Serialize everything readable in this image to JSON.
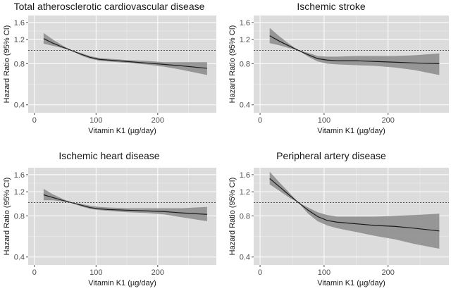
{
  "chart_data": [
    {
      "type": "line",
      "title": "Total atherosclerotic cardiovascular disease",
      "xlabel": "Vitamin K1 (µg/day)",
      "ylabel": "Hazard Ratio (95% CI)",
      "xlim": [
        -10,
        295
      ],
      "ylim": [
        0.35,
        1.8
      ],
      "ylog": true,
      "xticks": [
        0,
        100,
        200
      ],
      "xtick_labels": [
        "0",
        "100",
        "200"
      ],
      "yticks": [
        0.4,
        0.8,
        1.2,
        1.6
      ],
      "ytick_labels": [
        "0.4",
        "0.8",
        "1.2",
        "1.6"
      ],
      "reference_line_y": 1.0,
      "x": [
        15,
        30,
        45,
        60,
        75,
        90,
        105,
        120,
        150,
        180,
        210,
        240,
        280
      ],
      "y": [
        1.22,
        1.13,
        1.06,
        1.0,
        0.94,
        0.89,
        0.86,
        0.85,
        0.83,
        0.81,
        0.79,
        0.77,
        0.74
      ],
      "lower": [
        1.12,
        1.08,
        1.04,
        1.0,
        0.92,
        0.87,
        0.84,
        0.83,
        0.81,
        0.79,
        0.76,
        0.72,
        0.66
      ],
      "upper": [
        1.34,
        1.2,
        1.09,
        1.0,
        0.96,
        0.91,
        0.88,
        0.87,
        0.85,
        0.84,
        0.82,
        0.82,
        0.82
      ],
      "grid": true,
      "grid_color": "#ffffff",
      "panel_color": "#dcdcdc",
      "band_color": "#8a8a8a",
      "line_color": "#1a1a1a"
    },
    {
      "type": "line",
      "title": "Ischemic stroke",
      "xlabel": "Vitamin K1 (µg/day)",
      "ylabel": "Hazard Ratio (95% CI)",
      "xlim": [
        -10,
        295
      ],
      "ylim": [
        0.35,
        1.8
      ],
      "ylog": true,
      "xticks": [
        0,
        100,
        200
      ],
      "xtick_labels": [
        "0",
        "100",
        "200"
      ],
      "yticks": [
        0.4,
        0.8,
        1.2,
        1.6
      ],
      "ytick_labels": [
        "0.4",
        "0.8",
        "1.2",
        "1.6"
      ],
      "reference_line_y": 1.0,
      "x": [
        15,
        30,
        45,
        60,
        75,
        90,
        105,
        120,
        150,
        180,
        210,
        240,
        280
      ],
      "y": [
        1.28,
        1.17,
        1.08,
        1.0,
        0.93,
        0.87,
        0.85,
        0.84,
        0.84,
        0.83,
        0.82,
        0.81,
        0.8
      ],
      "lower": [
        1.13,
        1.09,
        1.04,
        1.0,
        0.9,
        0.83,
        0.8,
        0.79,
        0.78,
        0.77,
        0.75,
        0.72,
        0.66
      ],
      "upper": [
        1.46,
        1.27,
        1.12,
        1.0,
        0.96,
        0.91,
        0.9,
        0.9,
        0.91,
        0.91,
        0.91,
        0.92,
        0.95
      ],
      "grid": true,
      "grid_color": "#ffffff",
      "panel_color": "#dcdcdc",
      "band_color": "#8a8a8a",
      "line_color": "#1a1a1a"
    },
    {
      "type": "line",
      "title": "Ischemic heart disease",
      "xlabel": "Vitamin K1 (µg/day)",
      "ylabel": "Hazard Ratio (95% CI)",
      "xlim": [
        -10,
        295
      ],
      "ylim": [
        0.35,
        1.8
      ],
      "ylog": true,
      "xticks": [
        0,
        100,
        200
      ],
      "xtick_labels": [
        "0",
        "100",
        "200"
      ],
      "yticks": [
        0.4,
        0.8,
        1.2,
        1.6
      ],
      "ytick_labels": [
        "0.4",
        "0.8",
        "1.2",
        "1.6"
      ],
      "reference_line_y": 1.0,
      "x": [
        15,
        30,
        45,
        60,
        75,
        90,
        105,
        120,
        150,
        180,
        210,
        240,
        280
      ],
      "y": [
        1.14,
        1.09,
        1.04,
        1.0,
        0.96,
        0.92,
        0.9,
        0.89,
        0.88,
        0.87,
        0.86,
        0.84,
        0.82
      ],
      "lower": [
        1.04,
        1.04,
        1.02,
        1.0,
        0.94,
        0.9,
        0.88,
        0.87,
        0.85,
        0.84,
        0.82,
        0.78,
        0.73
      ],
      "upper": [
        1.26,
        1.15,
        1.07,
        1.0,
        0.98,
        0.95,
        0.93,
        0.92,
        0.91,
        0.91,
        0.91,
        0.91,
        0.93
      ],
      "grid": true,
      "grid_color": "#ffffff",
      "panel_color": "#dcdcdc",
      "band_color": "#8a8a8a",
      "line_color": "#1a1a1a"
    },
    {
      "type": "line",
      "title": "Peripheral artery disease",
      "xlabel": "Vitamin K1 (µg/day)",
      "ylabel": "Hazard Ratio (95% CI)",
      "xlim": [
        -10,
        295
      ],
      "ylim": [
        0.35,
        1.8
      ],
      "ylog": true,
      "xticks": [
        0,
        100,
        200
      ],
      "xtick_labels": [
        "0",
        "100",
        "200"
      ],
      "yticks": [
        0.4,
        0.8,
        1.2,
        1.6
      ],
      "ytick_labels": [
        "0.4",
        "0.8",
        "1.2",
        "1.6"
      ],
      "reference_line_y": 1.0,
      "x": [
        15,
        30,
        45,
        60,
        75,
        90,
        105,
        120,
        150,
        180,
        210,
        240,
        280
      ],
      "y": [
        1.5,
        1.31,
        1.14,
        1.0,
        0.88,
        0.79,
        0.74,
        0.72,
        0.7,
        0.68,
        0.67,
        0.65,
        0.62
      ],
      "lower": [
        1.36,
        1.22,
        1.09,
        1.0,
        0.83,
        0.73,
        0.68,
        0.65,
        0.61,
        0.57,
        0.54,
        0.5,
        0.46
      ],
      "upper": [
        1.68,
        1.41,
        1.19,
        1.0,
        0.92,
        0.85,
        0.81,
        0.79,
        0.79,
        0.79,
        0.8,
        0.81,
        0.83
      ],
      "grid": true,
      "grid_color": "#ffffff",
      "panel_color": "#dcdcdc",
      "band_color": "#8a8a8a",
      "line_color": "#1a1a1a"
    }
  ]
}
